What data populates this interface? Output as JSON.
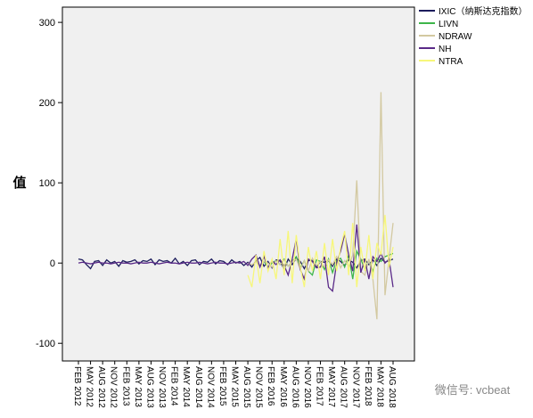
{
  "chart_data": {
    "type": "line",
    "y_label": "值",
    "categories": [
      "FEB 2012",
      null,
      null,
      "MAY 2012",
      null,
      null,
      "AUG 2012",
      null,
      null,
      "NOV 2012",
      null,
      null,
      "FEB 2013",
      null,
      null,
      "MAY 2013",
      null,
      null,
      "AUG 2013",
      null,
      null,
      "NOV 2013",
      null,
      null,
      "FEB 2014",
      null,
      null,
      "MAY 2014",
      null,
      null,
      "AUG 2014",
      null,
      null,
      "NOV 2014",
      null,
      null,
      "FEB 2015",
      null,
      null,
      "MAY 2015",
      null,
      null,
      "AUG 2015",
      null,
      null,
      "NOV 2015",
      null,
      null,
      "FEB 2016",
      null,
      null,
      "MAY 2016",
      null,
      null,
      "AUG 2016",
      null,
      null,
      "NOV 2016",
      null,
      null,
      "FEB 2017",
      null,
      null,
      "MAY 2017",
      null,
      null,
      "AUG 2017",
      null,
      null,
      "NOV 2017",
      null,
      null,
      "FEB 2018",
      null,
      null,
      "MAY 2018",
      null,
      null,
      "AUG 2018"
    ],
    "series": [
      {
        "name": "IXIC（纳斯达克指数）",
        "color": "#1c1c5c",
        "values": [
          5,
          4,
          -2,
          -7,
          2,
          3,
          -3,
          4,
          0,
          2,
          -4,
          3,
          1,
          2,
          4,
          -1,
          3,
          2,
          5,
          -2,
          4,
          2,
          3,
          0,
          6,
          -1,
          2,
          -3,
          3,
          4,
          -2,
          2,
          1,
          5,
          -1,
          3,
          2,
          -2,
          4,
          0,
          2,
          -3,
          1,
          -5,
          3,
          7,
          -4,
          2,
          -6,
          4,
          3,
          -8,
          5,
          -2,
          6,
          2,
          -7,
          3,
          4,
          -5,
          2,
          1,
          3,
          -4,
          5,
          2,
          -3,
          4,
          1,
          -6,
          3,
          5,
          -2,
          4,
          -3,
          6,
          1,
          3,
          5
        ]
      },
      {
        "name": "LIVN",
        "color": "#3db54a",
        "values": [
          null,
          null,
          null,
          null,
          null,
          null,
          null,
          null,
          null,
          null,
          null,
          null,
          null,
          null,
          null,
          null,
          null,
          null,
          null,
          null,
          null,
          null,
          null,
          null,
          null,
          null,
          null,
          null,
          null,
          null,
          null,
          null,
          null,
          null,
          null,
          null,
          null,
          null,
          null,
          null,
          null,
          null,
          null,
          null,
          null,
          -3,
          2,
          -5,
          0,
          3,
          -2,
          5,
          -4,
          2,
          8,
          -6,
          3,
          -10,
          -15,
          4,
          2,
          -8,
          5,
          -12,
          3,
          6,
          -5,
          10,
          -20,
          15,
          5,
          -8,
          3,
          -10,
          6,
          2,
          8,
          10,
          12
        ]
      },
      {
        "name": "NDRAW",
        "color": "#d3c9a1",
        "values": [
          null,
          null,
          null,
          null,
          null,
          null,
          null,
          null,
          null,
          null,
          null,
          null,
          null,
          null,
          null,
          null,
          null,
          null,
          null,
          null,
          null,
          null,
          null,
          null,
          null,
          null,
          null,
          null,
          null,
          null,
          null,
          null,
          null,
          null,
          null,
          null,
          null,
          null,
          null,
          null,
          null,
          null,
          0,
          -2,
          1,
          -3,
          2,
          0,
          -5,
          3,
          -2,
          4,
          -4,
          2,
          5,
          -8,
          3,
          -10,
          6,
          -3,
          2,
          -5,
          4,
          -2,
          8,
          -6,
          3,
          -4,
          10,
          103,
          -10,
          -15,
          5,
          -20,
          -70,
          213,
          -40,
          5,
          50
        ]
      },
      {
        "name": "NH",
        "color": "#5a2a88",
        "values": [
          0,
          1,
          0,
          -1,
          0,
          1,
          0,
          0,
          -1,
          0,
          1,
          0,
          0,
          -1,
          0,
          1,
          0,
          0,
          1,
          0,
          -1,
          0,
          1,
          0,
          0,
          -1,
          0,
          1,
          0,
          0,
          1,
          0,
          -1,
          0,
          1,
          0,
          0,
          -1,
          0,
          1,
          0,
          2,
          -3,
          5,
          10,
          -5,
          8,
          -6,
          3,
          -2,
          4,
          -3,
          -15,
          5,
          30,
          -8,
          -20,
          5,
          2,
          -6,
          -5,
          8,
          -30,
          -35,
          0,
          15,
          36,
          10,
          -10,
          48,
          -12,
          5,
          -20,
          8,
          2,
          12,
          0,
          5,
          -30
        ]
      },
      {
        "name": "NTRA",
        "color": "#f7f77a",
        "values": [
          null,
          null,
          null,
          null,
          null,
          null,
          null,
          null,
          null,
          null,
          null,
          null,
          null,
          null,
          null,
          null,
          null,
          null,
          null,
          null,
          null,
          null,
          null,
          null,
          null,
          null,
          null,
          null,
          null,
          null,
          null,
          null,
          null,
          null,
          null,
          null,
          null,
          null,
          null,
          null,
          null,
          null,
          -15,
          -30,
          10,
          -25,
          15,
          -10,
          5,
          -20,
          30,
          -15,
          40,
          -25,
          35,
          -5,
          -30,
          20,
          -10,
          15,
          -20,
          25,
          -15,
          30,
          -10,
          20,
          40,
          -15,
          50,
          -30,
          20,
          -10,
          35,
          -20,
          25,
          10,
          60,
          -5,
          20
        ]
      }
    ],
    "ylim": [
      -122,
      319
    ],
    "yticks": [
      -100,
      0,
      100,
      200,
      300
    ],
    "legend": "top-right",
    "background": "#f0f0f0",
    "watermark": "微信号: vcbeat"
  }
}
